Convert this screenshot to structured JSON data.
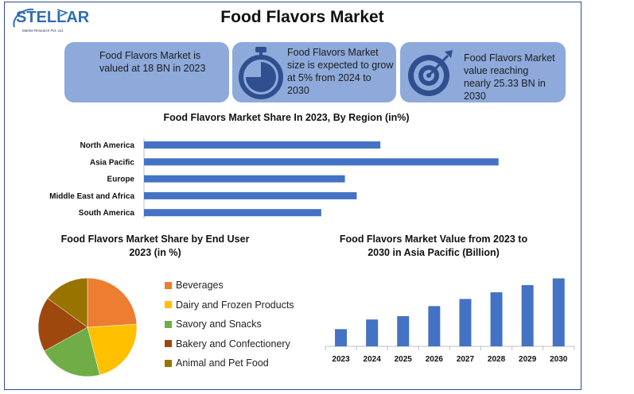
{
  "logo": {
    "name": "STELLAR",
    "tagline": "Market Research Pvt. Ltd."
  },
  "title": "Food Flavors Market",
  "cards": [
    {
      "text_lines": [
        "Food Flavors Market is",
        "valued at 18 BN in 2023"
      ],
      "icon": "none"
    },
    {
      "text_lines": [
        "Food Flavors Market",
        "size is expected to grow",
        "at 5% from 2024 to",
        "2030"
      ],
      "icon": "stopwatch-icon"
    },
    {
      "text_lines": [
        "Food Flavors Market",
        "value reaching",
        "nearly 25.33 BN in",
        "2030"
      ],
      "icon": "target-icon"
    }
  ],
  "colors": {
    "card_bg": "#8eaadb",
    "bar": "#4472c4",
    "frame": "#2e4b8c"
  },
  "chart_data": [
    {
      "type": "bar",
      "orientation": "horizontal",
      "title": "Food Flavors Market Share In 2023, By Region (in%)",
      "categories": [
        "North America",
        "Asia Pacific",
        "Europe",
        "Middle East and Africa",
        "South America"
      ],
      "values": [
        20,
        30,
        17,
        18,
        15
      ],
      "xlim": [
        0,
        35
      ],
      "grid": false,
      "color": "#4472c4"
    },
    {
      "type": "pie",
      "title_lines": [
        "Food Flavors Market Share by End User",
        "2023 (in %)"
      ],
      "labels": [
        "Beverages",
        "Dairy and Frozen Products",
        "Savory and Snacks",
        "Bakery and Confectionery",
        "Animal and Pet Food"
      ],
      "values": [
        24,
        22,
        21,
        18,
        15
      ],
      "colors": [
        "#ed7d31",
        "#ffc000",
        "#70ad47",
        "#9e480e",
        "#997300"
      ],
      "legend_position": "right"
    },
    {
      "type": "bar",
      "title_lines": [
        "Food Flavors Market Value from 2023 to",
        "2030 in Asia Pacific (Billion)"
      ],
      "categories": [
        "2023",
        "2024",
        "2025",
        "2026",
        "2027",
        "2028",
        "2029",
        "2030"
      ],
      "values": [
        4.1,
        6.4,
        7.2,
        9.6,
        11.3,
        12.9,
        14.6,
        16.2
      ],
      "ylim": [
        0,
        18
      ],
      "grid": false,
      "color": "#4472c4"
    }
  ]
}
